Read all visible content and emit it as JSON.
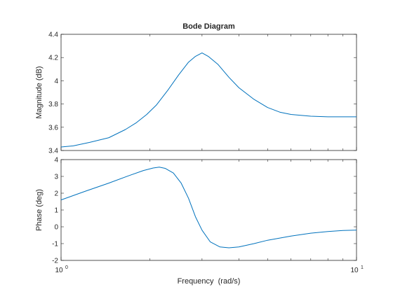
{
  "chart_data": [
    {
      "type": "line",
      "title": "Bode Diagram",
      "xlabel": "",
      "ylabel": "Magnitude (dB)",
      "xscale": "log",
      "xlim": [
        1,
        10
      ],
      "ylim": [
        3.4,
        4.4
      ],
      "yticks": [
        "3.4",
        "3.6",
        "3.8",
        "4",
        "4.2",
        "4.4"
      ],
      "grid": false,
      "color": "#0072BD",
      "series": [
        {
          "x": [
            1,
            1.1,
            1.25,
            1.45,
            1.65,
            1.8,
            1.95,
            2.1,
            2.3,
            2.5,
            2.7,
            2.85,
            3.0,
            3.15,
            3.4,
            3.7,
            4.0,
            4.5,
            5.0,
            5.5,
            6.0,
            7.0,
            8.0,
            9.0,
            10
          ],
          "y": [
            3.43,
            3.44,
            3.47,
            3.51,
            3.58,
            3.64,
            3.71,
            3.79,
            3.92,
            4.05,
            4.16,
            4.21,
            4.24,
            4.21,
            4.14,
            4.03,
            3.94,
            3.84,
            3.77,
            3.73,
            3.71,
            3.695,
            3.69,
            3.69,
            3.69
          ]
        }
      ]
    },
    {
      "type": "line",
      "title": "",
      "xlabel": "Frequency  (rad/s)",
      "ylabel": "Phase (deg)",
      "xscale": "log",
      "xlim": [
        1,
        10
      ],
      "ylim": [
        -2,
        4
      ],
      "xticks": [
        "10",
        "10"
      ],
      "xtick_exponents": [
        "0",
        "1"
      ],
      "yticks": [
        "-2",
        "-1",
        "0",
        "1",
        "2",
        "3",
        "4"
      ],
      "grid": false,
      "color": "#0072BD",
      "series": [
        {
          "x": [
            1,
            1.2,
            1.45,
            1.7,
            1.9,
            2.05,
            2.15,
            2.25,
            2.4,
            2.55,
            2.7,
            2.85,
            3.0,
            3.2,
            3.45,
            3.7,
            4.0,
            4.5,
            5.0,
            6.0,
            7.0,
            8.0,
            9.0,
            10
          ],
          "y": [
            1.6,
            2.1,
            2.6,
            3.05,
            3.35,
            3.5,
            3.55,
            3.48,
            3.2,
            2.6,
            1.7,
            0.6,
            -0.2,
            -0.9,
            -1.2,
            -1.25,
            -1.2,
            -1.0,
            -0.8,
            -0.55,
            -0.38,
            -0.28,
            -0.22,
            -0.2
          ]
        }
      ]
    }
  ]
}
